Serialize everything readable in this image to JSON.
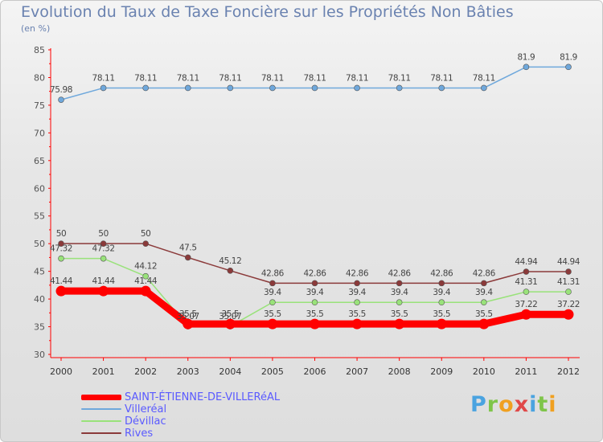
{
  "title": "Evolution du Taux de Taxe Foncière sur les Propriétés Non Bâties",
  "unit": "(en %)",
  "logo": {
    "text": "Proxiti",
    "letters": [
      "P",
      "r",
      "o",
      "x",
      "i",
      "t",
      "i"
    ]
  },
  "chart_data": {
    "type": "line",
    "title": "Evolution du Taux de Taxe Foncière sur les Propriétés Non Bâties",
    "ylabel": "(en %)",
    "xlabel": "",
    "ylim": [
      30,
      85
    ],
    "yticks": [
      30,
      35,
      40,
      45,
      50,
      55,
      60,
      65,
      70,
      75,
      80,
      85
    ],
    "grid": false,
    "legend_position": "bottom-left",
    "x": [
      "2000",
      "2001",
      "2002",
      "2003",
      "2004",
      "2005",
      "2006",
      "2007",
      "2008",
      "2009",
      "2010",
      "2011",
      "2012"
    ],
    "series": [
      {
        "name": "SAINT-ÉTIENNE-DE-VILLERéAL",
        "color": "#ff0000",
        "values": [
          41.44,
          41.44,
          41.44,
          35.5,
          35.5,
          35.5,
          35.5,
          35.5,
          35.5,
          35.5,
          35.5,
          37.22,
          37.22
        ],
        "labels": [
          "41.44",
          "41.44",
          "41.44",
          "35.5",
          "35.5",
          "35.5",
          "35.5",
          "35.5",
          "35.5",
          "35.5",
          "35.5",
          "37.22",
          "37.22"
        ]
      },
      {
        "name": "Villeréal",
        "color": "#6fa8dc",
        "values": [
          75.98,
          78.11,
          78.11,
          78.11,
          78.11,
          78.11,
          78.11,
          78.11,
          78.11,
          78.11,
          78.11,
          81.9,
          81.9
        ],
        "labels": [
          "75.98",
          "78.11",
          "78.11",
          "78.11",
          "78.11",
          "78.11",
          "78.11",
          "78.11",
          "78.11",
          "78.11",
          "78.11",
          "81.9",
          "81.9"
        ]
      },
      {
        "name": "Dévillac",
        "color": "#99e27a",
        "values": [
          47.32,
          47.32,
          44.12,
          35.07,
          35.07,
          39.4,
          39.4,
          39.4,
          39.4,
          39.4,
          39.4,
          41.31,
          41.31
        ],
        "labels": [
          "47.32",
          "47.32",
          "44.12",
          "35.07",
          "35.07",
          "39.4",
          "39.4",
          "39.4",
          "39.4",
          "39.4",
          "39.4",
          "41.31",
          "41.31"
        ]
      },
      {
        "name": "Rives",
        "color": "#8b3a3a",
        "values": [
          50,
          50,
          50,
          47.5,
          45.12,
          42.86,
          42.86,
          42.86,
          42.86,
          42.86,
          42.86,
          44.94,
          44.94
        ],
        "labels": [
          "50",
          "50",
          "50",
          "47.5",
          "45.12",
          "42.86",
          "42.86",
          "42.86",
          "42.86",
          "42.86",
          "42.86",
          "44.94",
          "44.94"
        ]
      }
    ]
  }
}
